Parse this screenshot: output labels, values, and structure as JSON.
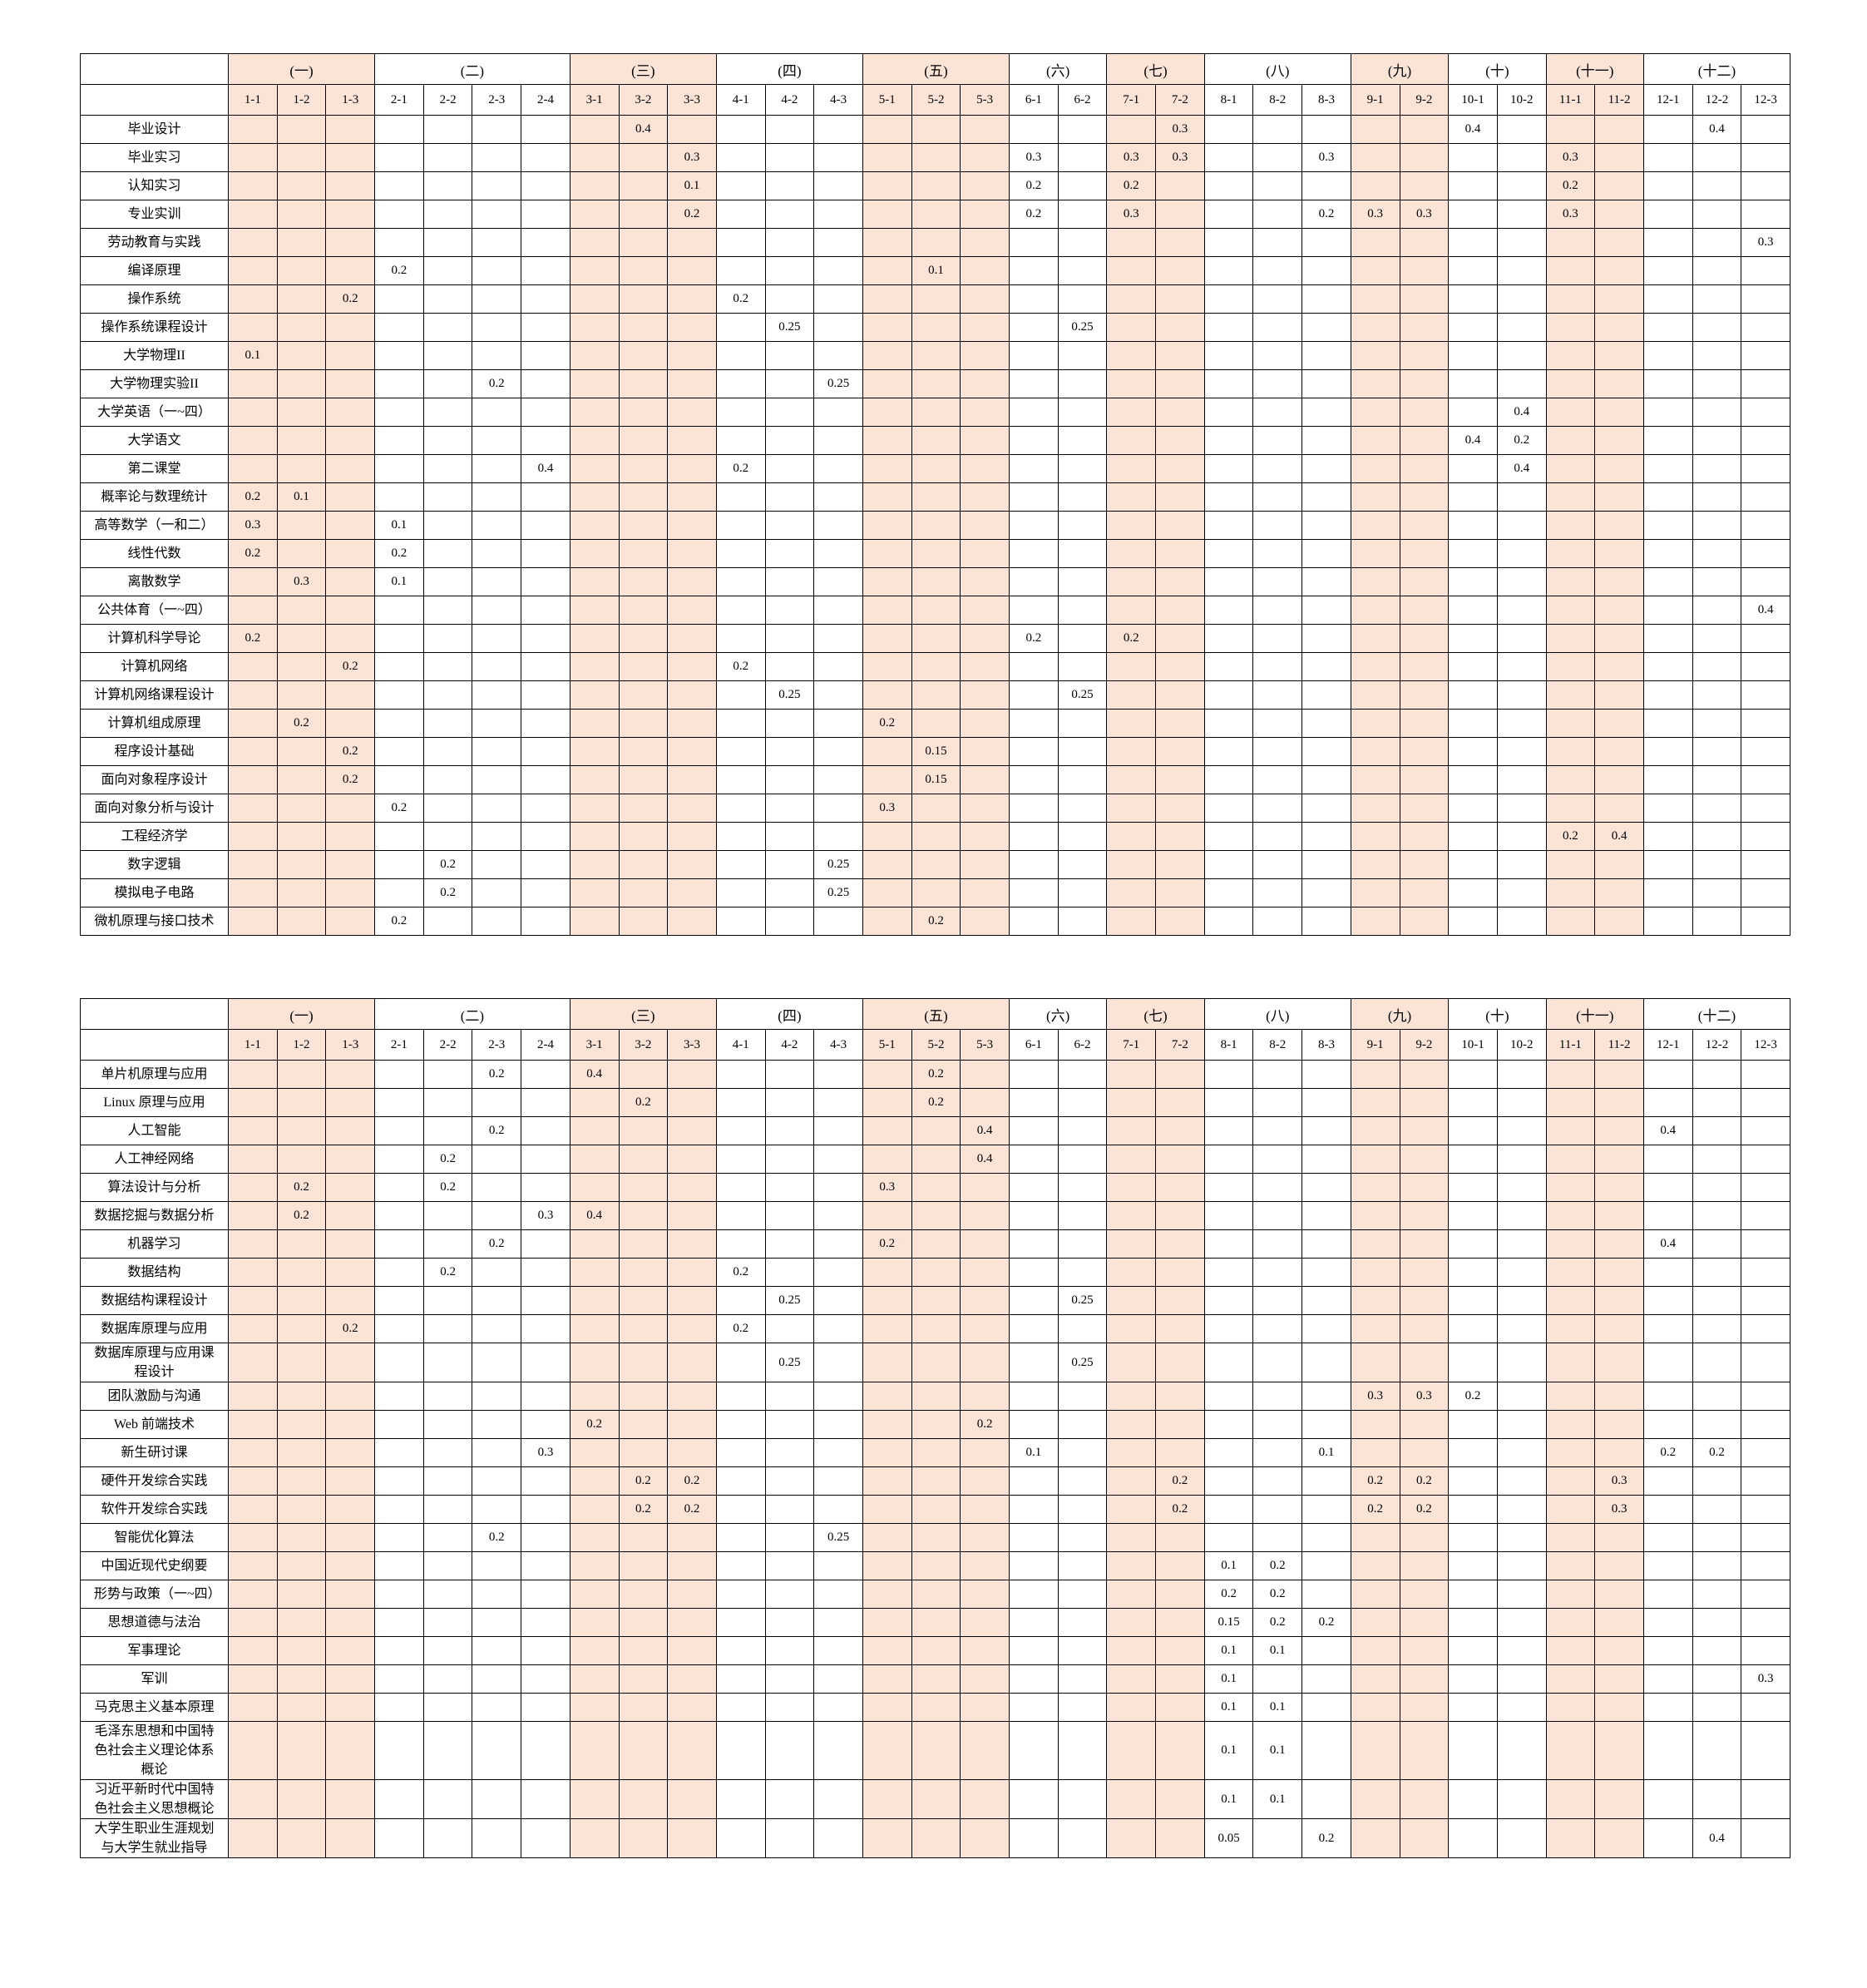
{
  "groups": [
    {
      "label": "(一)",
      "cols": [
        "1-1",
        "1-2",
        "1-3"
      ],
      "shaded": true
    },
    {
      "label": "(二)",
      "cols": [
        "2-1",
        "2-2",
        "2-3",
        "2-4"
      ],
      "shaded": false
    },
    {
      "label": "(三)",
      "cols": [
        "3-1",
        "3-2",
        "3-3"
      ],
      "shaded": true
    },
    {
      "label": "(四)",
      "cols": [
        "4-1",
        "4-2",
        "4-3"
      ],
      "shaded": false
    },
    {
      "label": "(五)",
      "cols": [
        "5-1",
        "5-2",
        "5-3"
      ],
      "shaded": true
    },
    {
      "label": "(六)",
      "cols": [
        "6-1",
        "6-2"
      ],
      "shaded": false
    },
    {
      "label": "(七)",
      "cols": [
        "7-1",
        "7-2"
      ],
      "shaded": true
    },
    {
      "label": "(八)",
      "cols": [
        "8-1",
        "8-2",
        "8-3"
      ],
      "shaded": false
    },
    {
      "label": "(九)",
      "cols": [
        "9-1",
        "9-2"
      ],
      "shaded": true
    },
    {
      "label": "(十)",
      "cols": [
        "10-1",
        "10-2"
      ],
      "shaded": false
    },
    {
      "label": "(十一)",
      "cols": [
        "11-1",
        "11-2"
      ],
      "shaded": true
    },
    {
      "label": "(十二)",
      "cols": [
        "12-1",
        "12-2",
        "12-3"
      ],
      "shaded": false
    }
  ],
  "shade_color": "#fbe3d6",
  "tables": [
    {
      "rows": [
        {
          "name": "毕业设计",
          "values": {
            "3-2": "0.4",
            "7-2": "0.3",
            "10-1": "0.4",
            "12-2": "0.4"
          }
        },
        {
          "name": "毕业实习",
          "values": {
            "3-3": "0.3",
            "6-1": "0.3",
            "7-1": "0.3",
            "7-2": "0.3",
            "8-3": "0.3",
            "11-1": "0.3"
          }
        },
        {
          "name": "认知实习",
          "values": {
            "3-3": "0.1",
            "6-1": "0.2",
            "7-1": "0.2",
            "11-1": "0.2"
          }
        },
        {
          "name": "专业实训",
          "values": {
            "3-3": "0.2",
            "6-1": "0.2",
            "7-1": "0.3",
            "8-3": "0.2",
            "9-1": "0.3",
            "9-2": "0.3",
            "11-1": "0.3"
          }
        },
        {
          "name": "劳动教育与实践",
          "values": {
            "12-3": "0.3"
          }
        },
        {
          "name": "编译原理",
          "values": {
            "2-1": "0.2",
            "5-2": "0.1"
          }
        },
        {
          "name": "操作系统",
          "values": {
            "1-3": "0.2",
            "4-1": "0.2"
          }
        },
        {
          "name": "操作系统课程设计",
          "values": {
            "4-2": "0.25",
            "6-2": "0.25"
          }
        },
        {
          "name": "大学物理II",
          "values": {
            "1-1": "0.1"
          }
        },
        {
          "name": "大学物理实验II",
          "values": {
            "2-3": "0.2",
            "4-3": "0.25"
          }
        },
        {
          "name": "大学英语（一~四）",
          "values": {
            "10-2": "0.4"
          }
        },
        {
          "name": "大学语文",
          "values": {
            "10-1": "0.4",
            "10-2": "0.2"
          }
        },
        {
          "name": "第二课堂",
          "values": {
            "2-4": "0.4",
            "4-1": "0.2",
            "10-2": "0.4"
          }
        },
        {
          "name": "概率论与数理统计",
          "values": {
            "1-1": "0.2",
            "1-2": "0.1"
          }
        },
        {
          "name": "高等数学（一和二）",
          "values": {
            "1-1": "0.3",
            "2-1": "0.1"
          }
        },
        {
          "name": "线性代数",
          "values": {
            "1-1": "0.2",
            "2-1": "0.2"
          }
        },
        {
          "name": "离散数学",
          "values": {
            "1-2": "0.3",
            "2-1": "0.1"
          }
        },
        {
          "name": "公共体育（一~四）",
          "values": {
            "12-3": "0.4"
          }
        },
        {
          "name": "计算机科学导论",
          "values": {
            "1-1": "0.2",
            "6-1": "0.2",
            "7-1": "0.2"
          }
        },
        {
          "name": "计算机网络",
          "values": {
            "1-3": "0.2",
            "4-1": "0.2"
          }
        },
        {
          "name": "计算机网络课程设计",
          "values": {
            "4-2": "0.25",
            "6-2": "0.25"
          }
        },
        {
          "name": "计算机组成原理",
          "values": {
            "1-2": "0.2",
            "5-1": "0.2"
          }
        },
        {
          "name": "程序设计基础",
          "values": {
            "1-3": "0.2",
            "5-2": "0.15"
          }
        },
        {
          "name": "面向对象程序设计",
          "values": {
            "1-3": "0.2",
            "5-2": "0.15"
          }
        },
        {
          "name": "面向对象分析与设计",
          "values": {
            "2-1": "0.2",
            "5-1": "0.3"
          }
        },
        {
          "name": "工程经济学",
          "values": {
            "11-1": "0.2",
            "11-2": "0.4"
          }
        },
        {
          "name": "数字逻辑",
          "values": {
            "2-2": "0.2",
            "4-3": "0.25"
          }
        },
        {
          "name": "模拟电子电路",
          "values": {
            "2-2": "0.2",
            "4-3": "0.25"
          }
        },
        {
          "name": "微机原理与接口技术",
          "values": {
            "2-1": "0.2",
            "5-2": "0.2"
          }
        }
      ]
    },
    {
      "rows": [
        {
          "name": "单片机原理与应用",
          "values": {
            "2-3": "0.2",
            "3-1": "0.4",
            "5-2": "0.2"
          }
        },
        {
          "name": "Linux 原理与应用",
          "values": {
            "3-2": "0.2",
            "5-2": "0.2"
          }
        },
        {
          "name": "人工智能",
          "values": {
            "2-3": "0.2",
            "5-3": "0.4",
            "12-1": "0.4"
          }
        },
        {
          "name": "人工神经网络",
          "values": {
            "2-2": "0.2",
            "5-3": "0.4"
          }
        },
        {
          "name": "算法设计与分析",
          "values": {
            "1-2": "0.2",
            "2-2": "0.2",
            "5-1": "0.3"
          }
        },
        {
          "name": "数据挖掘与数据分析",
          "values": {
            "1-2": "0.2",
            "2-4": "0.3",
            "3-1": "0.4"
          }
        },
        {
          "name": "机器学习",
          "values": {
            "2-3": "0.2",
            "5-1": "0.2",
            "12-1": "0.4"
          }
        },
        {
          "name": "数据结构",
          "values": {
            "2-2": "0.2",
            "4-1": "0.2"
          }
        },
        {
          "name": "数据结构课程设计",
          "values": {
            "4-2": "0.25",
            "6-2": "0.25"
          }
        },
        {
          "name": "数据库原理与应用",
          "values": {
            "1-3": "0.2",
            "4-1": "0.2"
          }
        },
        {
          "name": "数据库原理与应用课程设计",
          "values": {
            "4-2": "0.25",
            "6-2": "0.25"
          }
        },
        {
          "name": "团队激励与沟通",
          "values": {
            "9-1": "0.3",
            "9-2": "0.3",
            "10-1": "0.2"
          }
        },
        {
          "name": "Web 前端技术",
          "values": {
            "3-1": "0.2",
            "5-3": "0.2"
          }
        },
        {
          "name": "新生研讨课",
          "values": {
            "2-4": "0.3",
            "6-1": "0.1",
            "8-3": "0.1",
            "12-1": "0.2",
            "12-2": "0.2"
          }
        },
        {
          "name": "硬件开发综合实践",
          "values": {
            "3-2": "0.2",
            "3-3": "0.2",
            "7-2": "0.2",
            "9-1": "0.2",
            "9-2": "0.2",
            "11-2": "0.3"
          }
        },
        {
          "name": "软件开发综合实践",
          "values": {
            "3-2": "0.2",
            "3-3": "0.2",
            "7-2": "0.2",
            "9-1": "0.2",
            "9-2": "0.2",
            "11-2": "0.3"
          }
        },
        {
          "name": "智能优化算法",
          "values": {
            "2-3": "0.2",
            "4-3": "0.25"
          }
        },
        {
          "name": "中国近现代史纲要",
          "values": {
            "8-1": "0.1",
            "8-2": "0.2"
          }
        },
        {
          "name": "形势与政策（一~四）",
          "values": {
            "8-1": "0.2",
            "8-2": "0.2"
          }
        },
        {
          "name": "思想道德与法治",
          "values": {
            "8-1": "0.15",
            "8-2": "0.2",
            "8-3": "0.2"
          }
        },
        {
          "name": "军事理论",
          "values": {
            "8-1": "0.1",
            "8-2": "0.1"
          }
        },
        {
          "name": "军训",
          "values": {
            "8-1": "0.1",
            "12-3": "0.3"
          }
        },
        {
          "name": "马克思主义基本原理",
          "values": {
            "8-1": "0.1",
            "8-2": "0.1"
          }
        },
        {
          "name": "毛泽东思想和中国特色社会主义理论体系概论",
          "values": {
            "8-1": "0.1",
            "8-2": "0.1"
          }
        },
        {
          "name": "习近平新时代中国特色社会主义思想概论",
          "values": {
            "8-1": "0.1",
            "8-2": "0.1"
          }
        },
        {
          "name": "大学生职业生涯规划与大学生就业指导",
          "values": {
            "8-1": "0.05",
            "8-3": "0.2",
            "12-2": "0.4"
          }
        }
      ]
    }
  ]
}
